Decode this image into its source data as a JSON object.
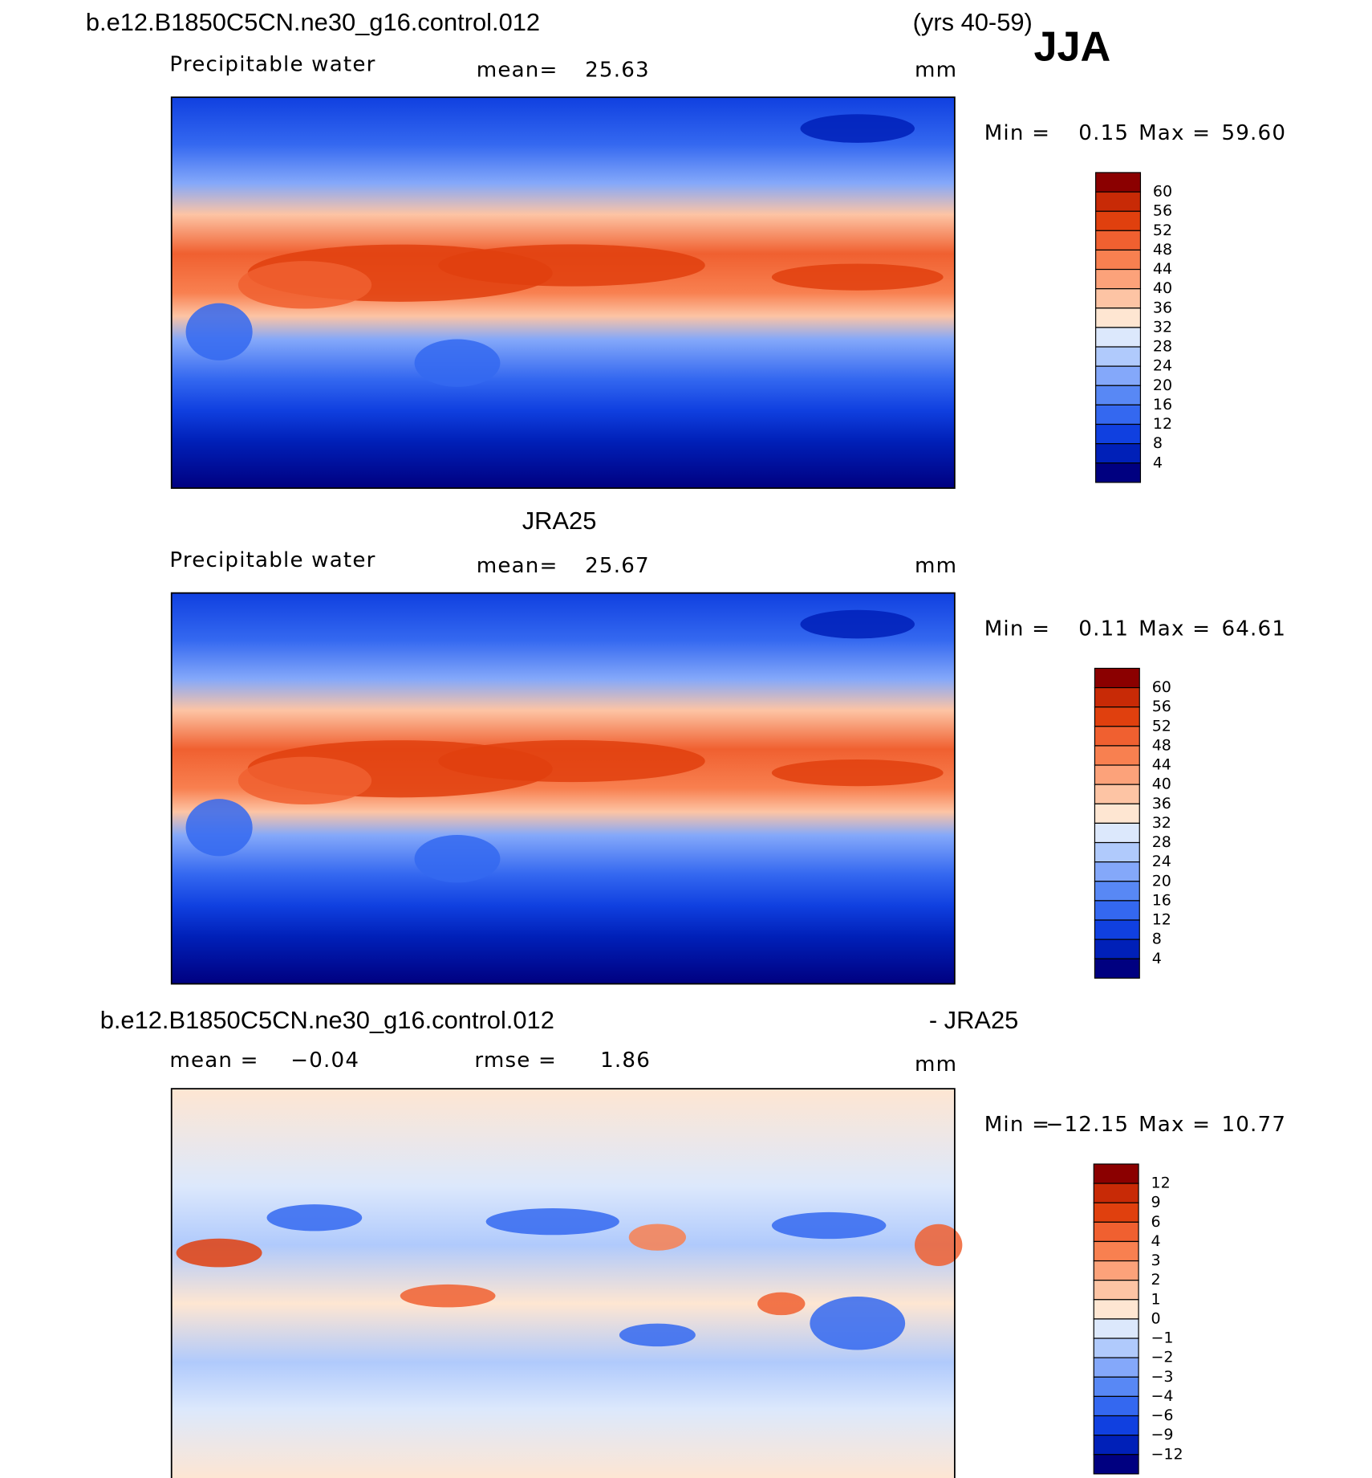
{
  "header": {
    "case": "b.e12.B1850C5CN.ne30_g16.control.012",
    "years": "(yrs 40-59)",
    "season": "JJA"
  },
  "colorbar_colors": [
    "#8b0000",
    "#c82a06",
    "#e0400e",
    "#f06030",
    "#f88050",
    "#fca27a",
    "#fdc4a4",
    "#fee6d2",
    "#dce8fc",
    "#b0cafc",
    "#84a8fa",
    "#5888f5",
    "#3468f0",
    "#1040e0",
    "#0020b8",
    "#000080"
  ],
  "panels": [
    {
      "variable": "Precipitable water",
      "mean_label": "mean=",
      "mean": "25.63",
      "units": "mm",
      "min_label": "Min =",
      "min": "0.15",
      "max_label": "Max =",
      "max": "59.60",
      "levels": [
        "60",
        "56",
        "52",
        "48",
        "44",
        "40",
        "36",
        "32",
        "28",
        "24",
        "20",
        "16",
        "12",
        "8",
        "4"
      ]
    },
    {
      "title": "JRA25",
      "variable": "Precipitable water",
      "mean_label": "mean=",
      "mean": "25.67",
      "units": "mm",
      "min_label": "Min =",
      "min": "0.11",
      "max_label": "Max =",
      "max": "64.61",
      "levels": [
        "60",
        "56",
        "52",
        "48",
        "44",
        "40",
        "36",
        "32",
        "28",
        "24",
        "20",
        "16",
        "12",
        "8",
        "4"
      ]
    },
    {
      "title": "b.e12.B1850C5CN.ne30_g16.control.012",
      "title_right": "- JRA25",
      "mean_label": "mean =",
      "mean": "−0.04",
      "rmse_label": "rmse =",
      "rmse": "1.86",
      "units": "mm",
      "min_label": "Min =",
      "min": "−12.15",
      "max_label": "Max =",
      "max": "10.77",
      "levels": [
        "12",
        "9",
        "6",
        "4",
        "3",
        "2",
        "1",
        "0",
        "−1",
        "−2",
        "−3",
        "−4",
        "−6",
        "−9",
        "−12"
      ]
    }
  ]
}
